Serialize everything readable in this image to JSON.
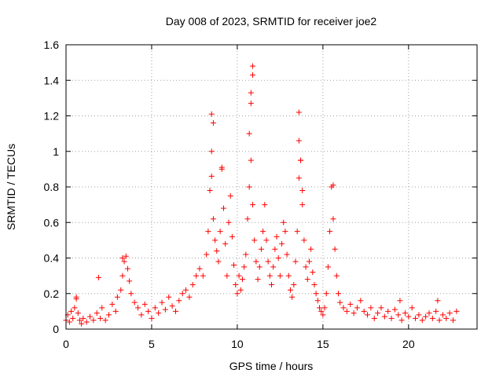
{
  "chart_data": {
    "type": "scatter",
    "title": "Day 008 of 2023, SRMTID for receiver joe2",
    "xlabel": "GPS time / hours",
    "ylabel": "SRMTID / TECUs",
    "xlim": [
      0,
      24
    ],
    "ylim": [
      0,
      1.6
    ],
    "xticks": [
      0,
      5,
      10,
      15,
      20
    ],
    "yticks": [
      0,
      0.2,
      0.4,
      0.6,
      0.8,
      1,
      1.2,
      1.4,
      1.6
    ],
    "ytick_labels": [
      "0",
      "0.2",
      "0.4",
      "0.6",
      "0.8",
      "1",
      "1.2",
      "1.4",
      "1.6"
    ],
    "grid": true,
    "marker": "plus",
    "color": "#ff0000",
    "series": [
      {
        "name": "SRMTID",
        "x": [
          0.0,
          0.1,
          0.2,
          0.3,
          0.4,
          0.5,
          0.6,
          0.7,
          0.8,
          0.9,
          1.0,
          1.2,
          1.4,
          1.6,
          1.8,
          2.0,
          2.1,
          2.3,
          2.5,
          2.7,
          2.9,
          3.0,
          3.2,
          3.3,
          3.4,
          3.5,
          3.6,
          3.7,
          3.8,
          4.0,
          4.2,
          4.4,
          4.6,
          4.8,
          5.0,
          5.2,
          5.4,
          5.6,
          5.8,
          6.0,
          6.2,
          6.4,
          6.6,
          6.8,
          7.0,
          7.2,
          7.4,
          7.6,
          7.8,
          8.0,
          8.2,
          8.3,
          8.4,
          8.5,
          8.6,
          8.7,
          8.8,
          8.9,
          9.0,
          9.1,
          9.2,
          9.3,
          9.4,
          9.5,
          9.6,
          9.7,
          9.8,
          9.9,
          10.0,
          10.1,
          10.2,
          10.3,
          10.4,
          10.5,
          10.6,
          10.7,
          10.8,
          10.9,
          11.0,
          11.1,
          11.2,
          11.3,
          11.4,
          11.5,
          11.6,
          11.7,
          11.8,
          11.9,
          12.0,
          12.1,
          12.2,
          12.3,
          12.4,
          12.5,
          12.6,
          12.7,
          12.8,
          12.9,
          13.0,
          13.1,
          13.2,
          13.3,
          13.4,
          13.5,
          13.6,
          13.7,
          13.8,
          13.9,
          14.0,
          14.1,
          14.2,
          14.3,
          14.4,
          14.5,
          14.6,
          14.7,
          14.8,
          14.9,
          15.0,
          15.1,
          15.2,
          15.3,
          15.4,
          15.5,
          15.6,
          15.7,
          15.8,
          15.9,
          16.0,
          16.2,
          16.4,
          16.6,
          16.8,
          17.0,
          17.2,
          17.4,
          17.6,
          17.8,
          18.0,
          18.2,
          18.4,
          18.6,
          18.8,
          19.0,
          19.2,
          19.4,
          19.6,
          19.8,
          20.0,
          20.2,
          20.4,
          20.6,
          20.8,
          21.0,
          21.2,
          21.4,
          21.6,
          21.8,
          22.0,
          22.2,
          22.4,
          22.6,
          22.8,
          8.5,
          8.5,
          8.6,
          9.1,
          10.9,
          10.9,
          10.8,
          10.8,
          10.7,
          13.6,
          13.6,
          13.7,
          13.8,
          15.6,
          1.9,
          3.3,
          0.6,
          21.7,
          19.5
        ],
        "values": [
          0.05,
          0.08,
          0.04,
          0.1,
          0.06,
          0.12,
          0.17,
          0.09,
          0.05,
          0.03,
          0.06,
          0.04,
          0.07,
          0.05,
          0.09,
          0.06,
          0.12,
          0.05,
          0.08,
          0.14,
          0.1,
          0.18,
          0.22,
          0.3,
          0.38,
          0.41,
          0.34,
          0.27,
          0.2,
          0.15,
          0.12,
          0.08,
          0.14,
          0.1,
          0.06,
          0.12,
          0.09,
          0.15,
          0.11,
          0.18,
          0.13,
          0.1,
          0.16,
          0.2,
          0.22,
          0.18,
          0.25,
          0.3,
          0.34,
          0.3,
          0.42,
          0.55,
          0.78,
          0.86,
          0.62,
          0.5,
          0.44,
          0.38,
          0.55,
          0.9,
          0.68,
          0.48,
          0.3,
          0.6,
          0.75,
          0.52,
          0.36,
          0.25,
          0.2,
          0.3,
          0.22,
          0.28,
          0.35,
          0.42,
          0.62,
          0.8,
          0.95,
          0.7,
          0.5,
          0.38,
          0.28,
          0.35,
          0.45,
          0.55,
          0.7,
          0.5,
          0.38,
          0.3,
          0.25,
          0.35,
          0.45,
          0.52,
          0.4,
          0.3,
          0.48,
          0.6,
          0.55,
          0.42,
          0.3,
          0.22,
          0.18,
          0.25,
          0.38,
          0.55,
          0.85,
          0.95,
          0.7,
          0.5,
          0.35,
          0.28,
          0.38,
          0.45,
          0.32,
          0.25,
          0.2,
          0.16,
          0.12,
          0.1,
          0.08,
          0.12,
          0.2,
          0.35,
          0.55,
          0.8,
          0.62,
          0.45,
          0.3,
          0.2,
          0.15,
          0.12,
          0.1,
          0.14,
          0.09,
          0.12,
          0.16,
          0.1,
          0.08,
          0.12,
          0.06,
          0.09,
          0.12,
          0.07,
          0.1,
          0.06,
          0.11,
          0.08,
          0.05,
          0.09,
          0.07,
          0.12,
          0.06,
          0.08,
          0.05,
          0.07,
          0.09,
          0.06,
          0.1,
          0.05,
          0.08,
          0.06,
          0.09,
          0.05,
          0.1,
          1.21,
          1.0,
          1.16,
          0.91,
          1.48,
          1.43,
          1.33,
          1.27,
          1.1,
          1.22,
          1.06,
          0.95,
          0.78,
          0.81,
          0.29,
          0.4,
          0.18,
          0.16,
          0.16
        ]
      }
    ]
  }
}
